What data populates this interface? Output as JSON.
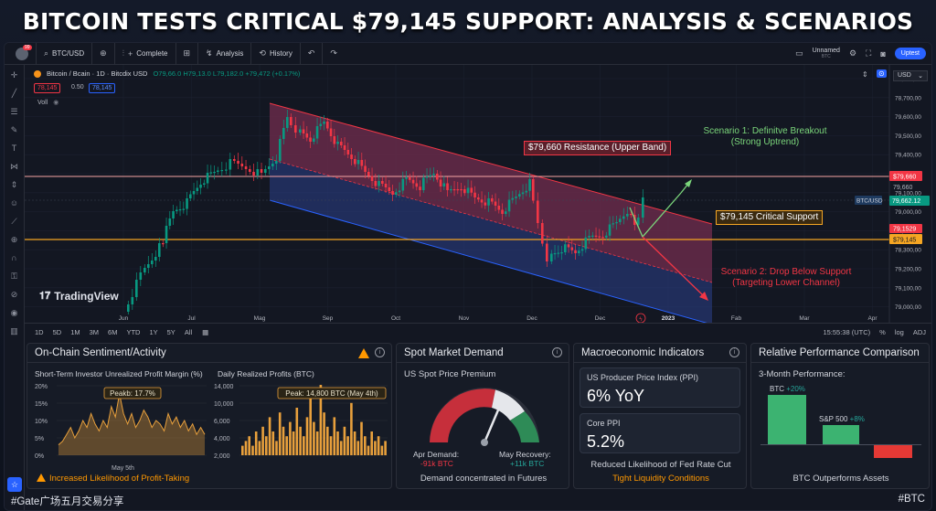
{
  "headline": "BITCOIN TESTS CRITICAL $79,145 SUPPORT: ANALYSIS & SCENARIOS",
  "topbar": {
    "badge": "99",
    "symbol": "BTC/USD",
    "complete": "Complete",
    "analysis": "Analysis",
    "history": "History",
    "unnamed": "Unnamed",
    "unnamed_sub": "BTC",
    "publish": "Uptest"
  },
  "legend": {
    "title": "Bitcoin / Bcain · 1D · Bitcdix USD",
    "ohlc": "O79,66.0  H79,13.0  L79,182.0  +79,472 (+0.17%)",
    "box_left": "78,145",
    "box_mid": "0.50",
    "box_right": "78,145",
    "vol": "Voll"
  },
  "usd_select": "USD",
  "price_axis": [
    "79,800,00",
    "78,700,00",
    "79,600,00",
    "79,500,00",
    "79,400,00",
    "79,300,00",
    "79,100,00",
    "79,000,00",
    "79,400,00",
    "78,300,00",
    "79,200,00",
    "79,100,00",
    "79,000,00"
  ],
  "price_tags": {
    "resistance": "$79,660",
    "resistance_gray": "79,660",
    "current_label": "BTC/USD",
    "current": "79,662.12",
    "upper_support": "79,1529",
    "support": "$79,145"
  },
  "time_axis": [
    "Jun",
    "Jul",
    "Mag",
    "Sep",
    "Oct",
    "Nov",
    "Dec",
    "Dec",
    "2023",
    "Fab",
    "Mar",
    "Apr",
    "May",
    "Jun"
  ],
  "annotations": {
    "resistance": "$79,660 Resistance (Upper Band)",
    "support": "$79,145 Critical Support",
    "scenario1_line1": "Scenario 1: Definitve Breakout",
    "scenario1_line2": "(Strong Uptrend)",
    "scenario2_line1": "Scenario 2: Drop Below Support",
    "scenario2_line2": "(Targeting Lower Channel)"
  },
  "branding": "TradingView",
  "timeframes": [
    "1D",
    "5D",
    "1M",
    "3M",
    "6M",
    "YTD",
    "1Y",
    "5Y",
    "All"
  ],
  "clock": "15:55:38 (UTC)",
  "adj": "ADJ",
  "panels": {
    "onchain": {
      "title": "On-Chain Sentiment/Activity",
      "left_title": "Short-Term Investor Unrealized Profit Margin (%)",
      "left_peak": "Peakb: 17.7%",
      "left_y": [
        "20%",
        "15%",
        "10%",
        "5%",
        "0%"
      ],
      "left_x": "May 5th",
      "right_title": "Daily Realized Profits (BTC)",
      "right_peak": "Peak: 14,800 BTC (May 4th)",
      "right_y": [
        "14,000",
        "10,000",
        "6,000",
        "4,000",
        "2,000"
      ],
      "footer": "Increased Likelihood of Profit-Taking"
    },
    "spot": {
      "title": "Spot Market Demand",
      "subtitle": "US Spot Price Premium",
      "left_label": "Apr Demand:",
      "left_value": "-91k BTC",
      "right_label": "May Recovery:",
      "right_value": "+11k BTC",
      "footer": "Demand concentrated in Futures"
    },
    "macro": {
      "title": "Macroeconomic Indicators",
      "ppi_label": "US Producer Price Index (PPI)",
      "ppi_value": "6% YoY",
      "core_label": "Core PPI",
      "core_value": "5.2%",
      "note": "Reduced Likelihood of Fed Rate Cut",
      "footer": "Tight Liquidity Conditions"
    },
    "relative": {
      "title": "Relative Performance Comparison",
      "subtitle": "3-Month Performance:",
      "btc_label": "BTC",
      "btc_value": "+20%",
      "sp_label": "S&P 500",
      "sp_value": "+8%",
      "footer": "BTC Outperforms Assets"
    }
  },
  "footer_left": "#Gate广场五月交易分享",
  "footer_right": "#BTC",
  "colors": {
    "up": "#089981",
    "down": "#f23645",
    "support": "#f5a623",
    "accent": "#2962ff",
    "bar": "#e8a03c"
  }
}
